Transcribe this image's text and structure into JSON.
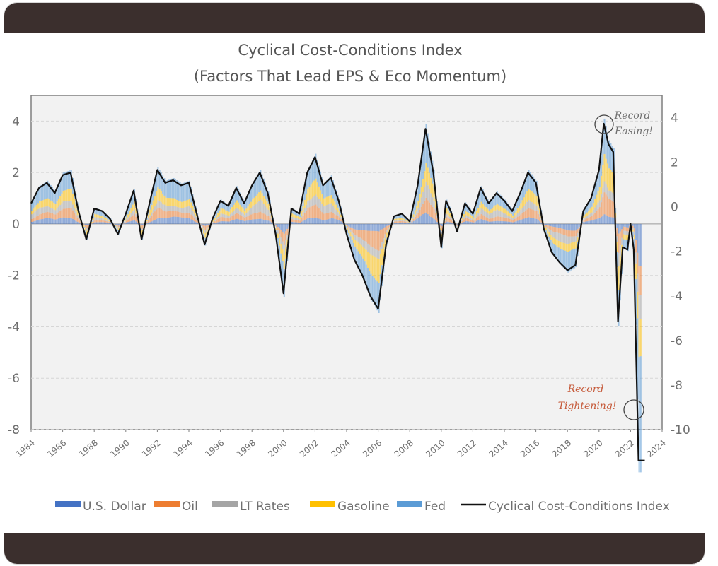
{
  "chart_data": {
    "type": "area",
    "title": "Cyclical Cost-Conditions Index",
    "subtitle": "(Factors That Lead EPS & Eco Momentum)",
    "left_axis": {
      "ylim": [
        -8,
        5
      ],
      "ticks": [
        "4",
        "2",
        "0",
        "-2",
        "-4",
        "-6",
        "-8"
      ]
    },
    "right_axis": {
      "ylim": [
        -10,
        5
      ],
      "ticks": [
        "4",
        "2",
        "0",
        "-2",
        "-4",
        "-6",
        "-8",
        "-10"
      ]
    },
    "x_ticks": [
      "1984",
      "1986",
      "1988",
      "1990",
      "1992",
      "1994",
      "1996",
      "1998",
      "2000",
      "2002",
      "2004",
      "2006",
      "2008",
      "2010",
      "2012",
      "2014",
      "2016",
      "2018",
      "2020",
      "2022",
      "2024"
    ],
    "xlim": [
      1984,
      2024
    ],
    "grid": true,
    "legend_position": "bottom",
    "colors": {
      "us_dollar": "#4472c4",
      "oil": "#ed7d31",
      "lt_rates": "#a5a5a5",
      "gasoline": "#ffc000",
      "fed": "#5b9bd5",
      "index": "#111111"
    },
    "legend": [
      {
        "key": "us_dollar",
        "label": "U.S. Dollar"
      },
      {
        "key": "oil",
        "label": "Oil"
      },
      {
        "key": "lt_rates",
        "label": "LT Rates"
      },
      {
        "key": "gasoline",
        "label": "Gasoline"
      },
      {
        "key": "fed",
        "label": "Fed"
      },
      {
        "key": "index",
        "label": "Cyclical Cost-Conditions Index"
      }
    ],
    "index_series": {
      "name": "Cyclical Cost-Conditions Index",
      "x": [
        1984.0,
        1984.5,
        1985.0,
        1985.5,
        1986.0,
        1986.5,
        1987.0,
        1987.5,
        1988.0,
        1988.5,
        1989.0,
        1989.5,
        1990.0,
        1990.5,
        1991.0,
        1991.5,
        1992.0,
        1992.5,
        1993.0,
        1993.5,
        1994.0,
        1994.5,
        1995.0,
        1995.5,
        1996.0,
        1996.5,
        1997.0,
        1997.5,
        1998.0,
        1998.5,
        1999.0,
        1999.5,
        2000.0,
        2000.5,
        2001.0,
        2001.5,
        2002.0,
        2002.5,
        2003.0,
        2003.5,
        2004.0,
        2004.5,
        2005.0,
        2005.5,
        2006.0,
        2006.5,
        2007.0,
        2007.5,
        2008.0,
        2008.5,
        2009.0,
        2009.5,
        2010.0,
        2010.3,
        2010.6,
        2011.0,
        2011.5,
        2012.0,
        2012.5,
        2013.0,
        2013.5,
        2014.0,
        2014.5,
        2015.0,
        2015.5,
        2016.0,
        2016.5,
        2017.0,
        2017.5,
        2018.0,
        2018.5,
        2019.0,
        2019.5,
        2020.0,
        2020.3,
        2020.6,
        2020.9,
        2021.2,
        2021.5,
        2021.8,
        2022.0,
        2022.2,
        2022.5,
        2022.8,
        2022.9
      ],
      "values": [
        0.8,
        1.4,
        1.6,
        1.2,
        1.9,
        2.0,
        0.5,
        -0.6,
        0.6,
        0.5,
        0.2,
        -0.4,
        0.4,
        1.3,
        -0.6,
        0.8,
        2.1,
        1.6,
        1.7,
        1.5,
        1.6,
        0.4,
        -0.8,
        0.2,
        0.9,
        0.7,
        1.4,
        0.8,
        1.5,
        2.0,
        1.2,
        -0.4,
        -2.7,
        0.6,
        0.4,
        2.0,
        2.6,
        1.5,
        1.8,
        0.9,
        -0.4,
        -1.4,
        -2.0,
        -2.8,
        -3.3,
        -0.8,
        0.3,
        0.4,
        0.1,
        1.5,
        3.7,
        2.0,
        -0.9,
        0.9,
        0.5,
        -0.3,
        0.8,
        0.4,
        1.4,
        0.8,
        1.2,
        0.9,
        0.5,
        1.2,
        2.0,
        1.6,
        -0.2,
        -1.1,
        -1.5,
        -1.8,
        -1.6,
        0.5,
        1.0,
        2.1,
        3.9,
        3.1,
        2.8,
        -3.8,
        -0.9,
        -1.0,
        0.0,
        -1.0,
        -9.2,
        -9.2,
        -9.2
      ]
    },
    "annotations": [
      {
        "text_lines": [
          "Record",
          "Easing!"
        ],
        "color": "#6f6f6f",
        "x": 2020.3,
        "y": 3.9
      },
      {
        "text_lines": [
          "Record",
          "Tightening!"
        ],
        "color": "#c65a3a",
        "x": 2022.6,
        "y": -7.4
      }
    ]
  }
}
